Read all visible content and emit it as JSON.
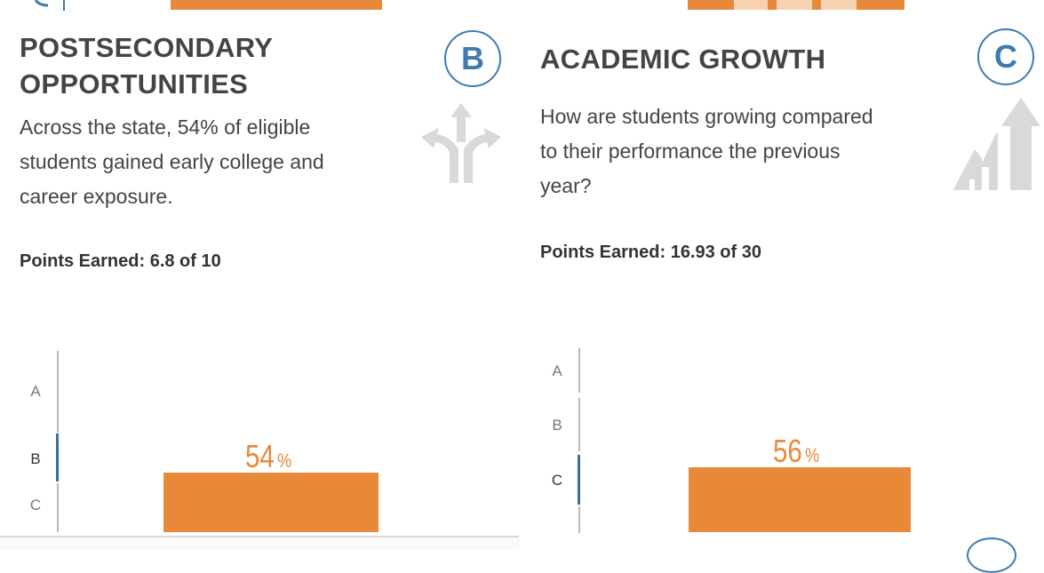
{
  "left_card": {
    "heading_line1": "POSTSECONDARY",
    "heading_line2": "OPPORTUNITIES",
    "grade": "B",
    "description_lines": [
      "Across the state, 54% of eligible",
      "students gained early college and",
      "career exposure."
    ],
    "points_earned": "Points Earned: 6.8 of 10",
    "icon": "crossroads-arrows-icon",
    "scale": [
      "A",
      "B",
      "C"
    ],
    "active_grade": "B",
    "percent_value": "54",
    "percent_sign": "%",
    "percent": 54
  },
  "right_card": {
    "heading": "ACADEMIC GROWTH",
    "grade": "C",
    "description_lines": [
      "How are students growing compared",
      "to their performance the previous",
      "year?"
    ],
    "points_earned": "Points Earned: 16.93 of 30",
    "icon": "growth-arrow-icon",
    "scale": [
      "A",
      "B",
      "C"
    ],
    "active_grade": "C",
    "percent_value": "56",
    "percent_sign": "%",
    "percent": 56
  },
  "colors": {
    "accent_orange": "#e8893a",
    "grade_blue": "#3d7bb0",
    "scale_active": "#3d6e94",
    "icon_gray": "#d9d9d9"
  }
}
